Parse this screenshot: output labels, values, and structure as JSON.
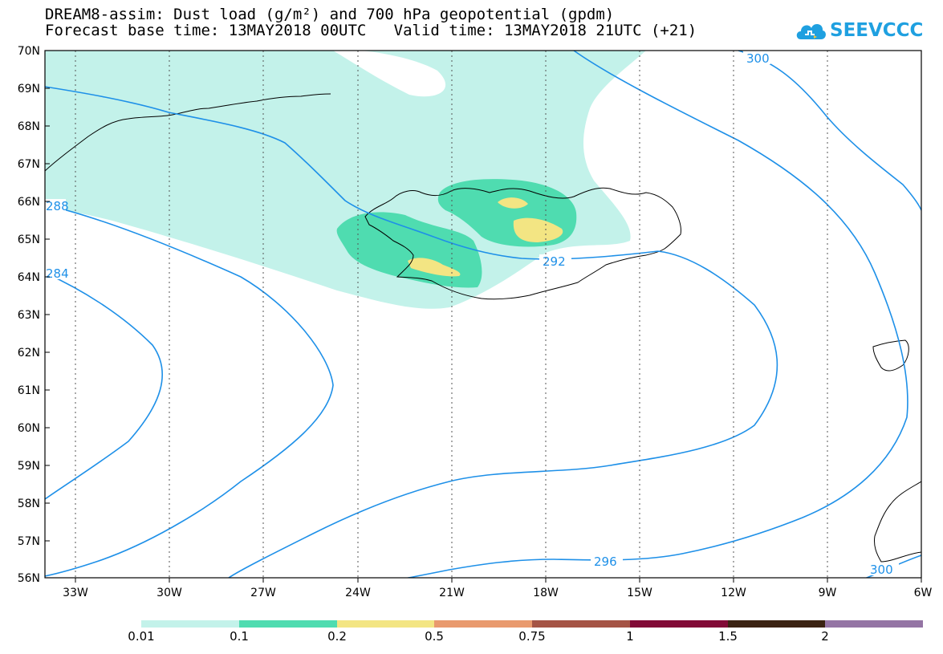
{
  "title_line1": "DREAM8-assim: Dust load (g/m²) and 700 hPa geopotential (gpdm)",
  "title_line2": "Forecast base time: 13MAY2018 00UTC   Valid time: 13MAY2018 21UTC (+21)",
  "brand": {
    "name": "SEEVCCC",
    "logo_icon": "cloud-icon",
    "color": "#1fa0e0"
  },
  "map": {
    "lat_ticks": [
      "70N",
      "69N",
      "68N",
      "67N",
      "66N",
      "65N",
      "64N",
      "63N",
      "62N",
      "61N",
      "60N",
      "59N",
      "58N",
      "57N",
      "56N"
    ],
    "lon_ticks": [
      "33W",
      "30W",
      "27W",
      "24W",
      "21W",
      "18W",
      "15W",
      "12W",
      "9W",
      "6W"
    ],
    "contour_labels": [
      "300",
      "288",
      "284",
      "292",
      "296",
      "300"
    ],
    "contour_color": "#1e90e8"
  },
  "colorbar": {
    "colors": [
      "#c3f2ea",
      "#4fdcb0",
      "#f3e583",
      "#e99a6e",
      "#a55445",
      "#820a37",
      "#3b2313",
      "#9474a4"
    ],
    "labels": [
      "0.01",
      "0.1",
      "0.2",
      "0.5",
      "0.75",
      "1",
      "1.5",
      "2"
    ]
  }
}
